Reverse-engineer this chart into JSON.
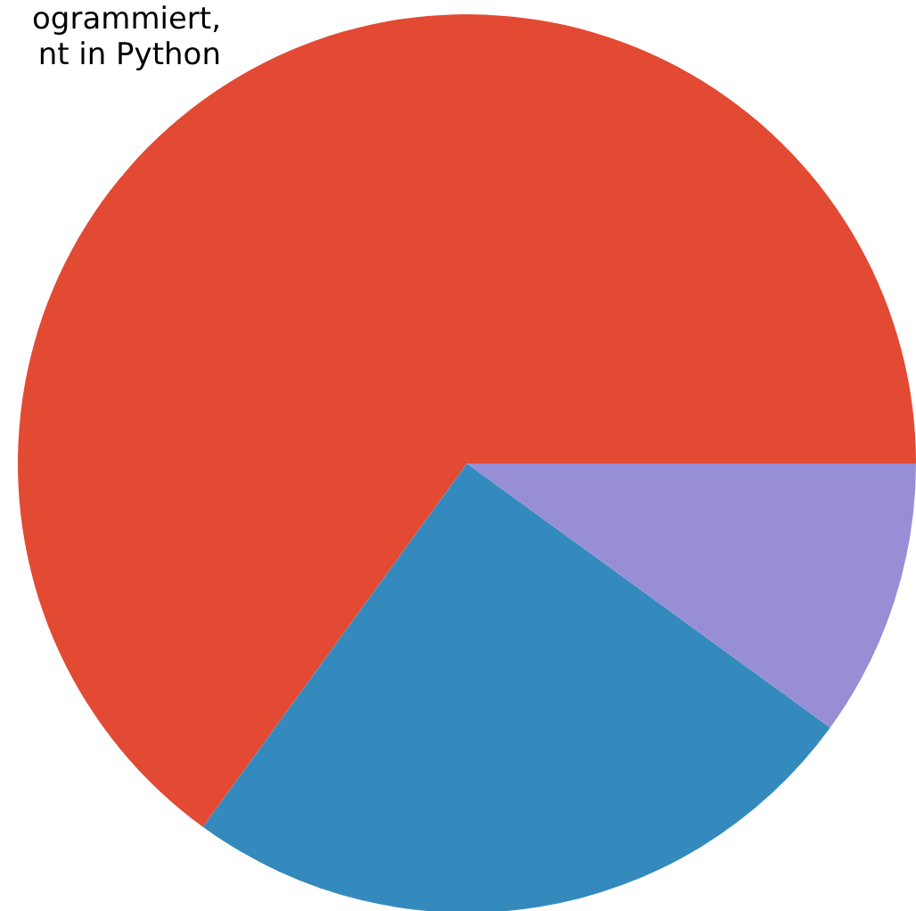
{
  "chart_data": {
    "type": "pie",
    "categories": [
      "ogrammiert,\nnt in Python",
      null,
      null
    ],
    "values": [
      65,
      25,
      10
    ],
    "colors": [
      "#e24a33",
      "#348abd",
      "#988ed5"
    ]
  }
}
